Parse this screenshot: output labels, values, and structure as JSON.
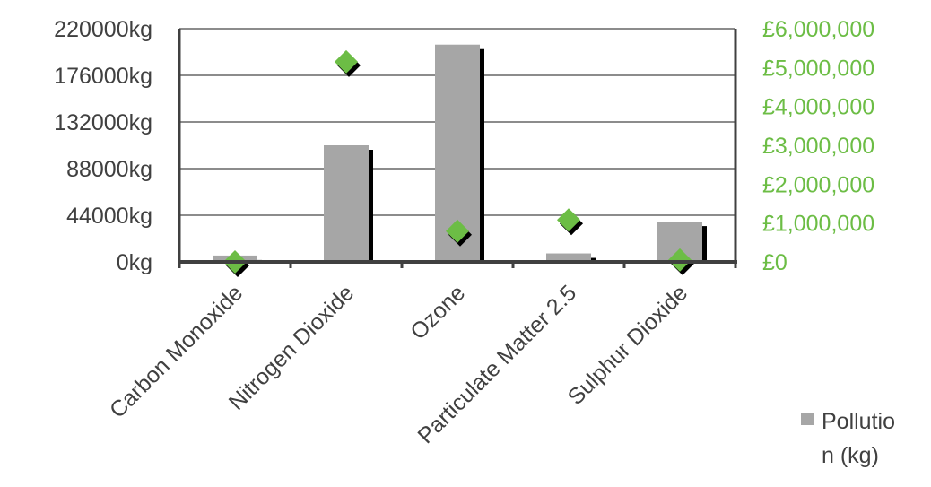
{
  "chart_data": {
    "type": "bar",
    "title": "",
    "xlabel": "",
    "ylabel": "",
    "categories": [
      "Carbon Monoxide",
      "Nitrogen Dioxide",
      "Ozone",
      "Particulate Matter 2.5",
      "Sulphur Dioxide"
    ],
    "series": [
      {
        "name": "Pollution (kg)",
        "kind": "bar",
        "axis": "left",
        "color": "#a6a6a6",
        "values": [
          6000,
          110000,
          205000,
          8000,
          38000
        ]
      },
      {
        "kind": "marker",
        "marker": "diamond",
        "axis": "right",
        "color": "#6cbd45",
        "values": [
          0,
          5150000,
          790000,
          1080000,
          50000
        ]
      }
    ],
    "left_axis": {
      "ylim": [
        0,
        220000
      ],
      "ticks": [
        "0kg",
        "44000kg",
        "88000kg",
        "132000kg",
        "176000kg",
        "220000kg"
      ]
    },
    "right_axis": {
      "ylim": [
        0,
        6000000
      ],
      "ticks": [
        "£0",
        "£1,000,000",
        "£2,000,000",
        "£3,000,000",
        "£4,000,000",
        "£5,000,000",
        "£6,000,000"
      ],
      "color": "#6cbd45"
    },
    "grid": true,
    "legend": {
      "position": "bottom-right",
      "lines": [
        "Pollutio",
        "n (kg)"
      ]
    }
  }
}
